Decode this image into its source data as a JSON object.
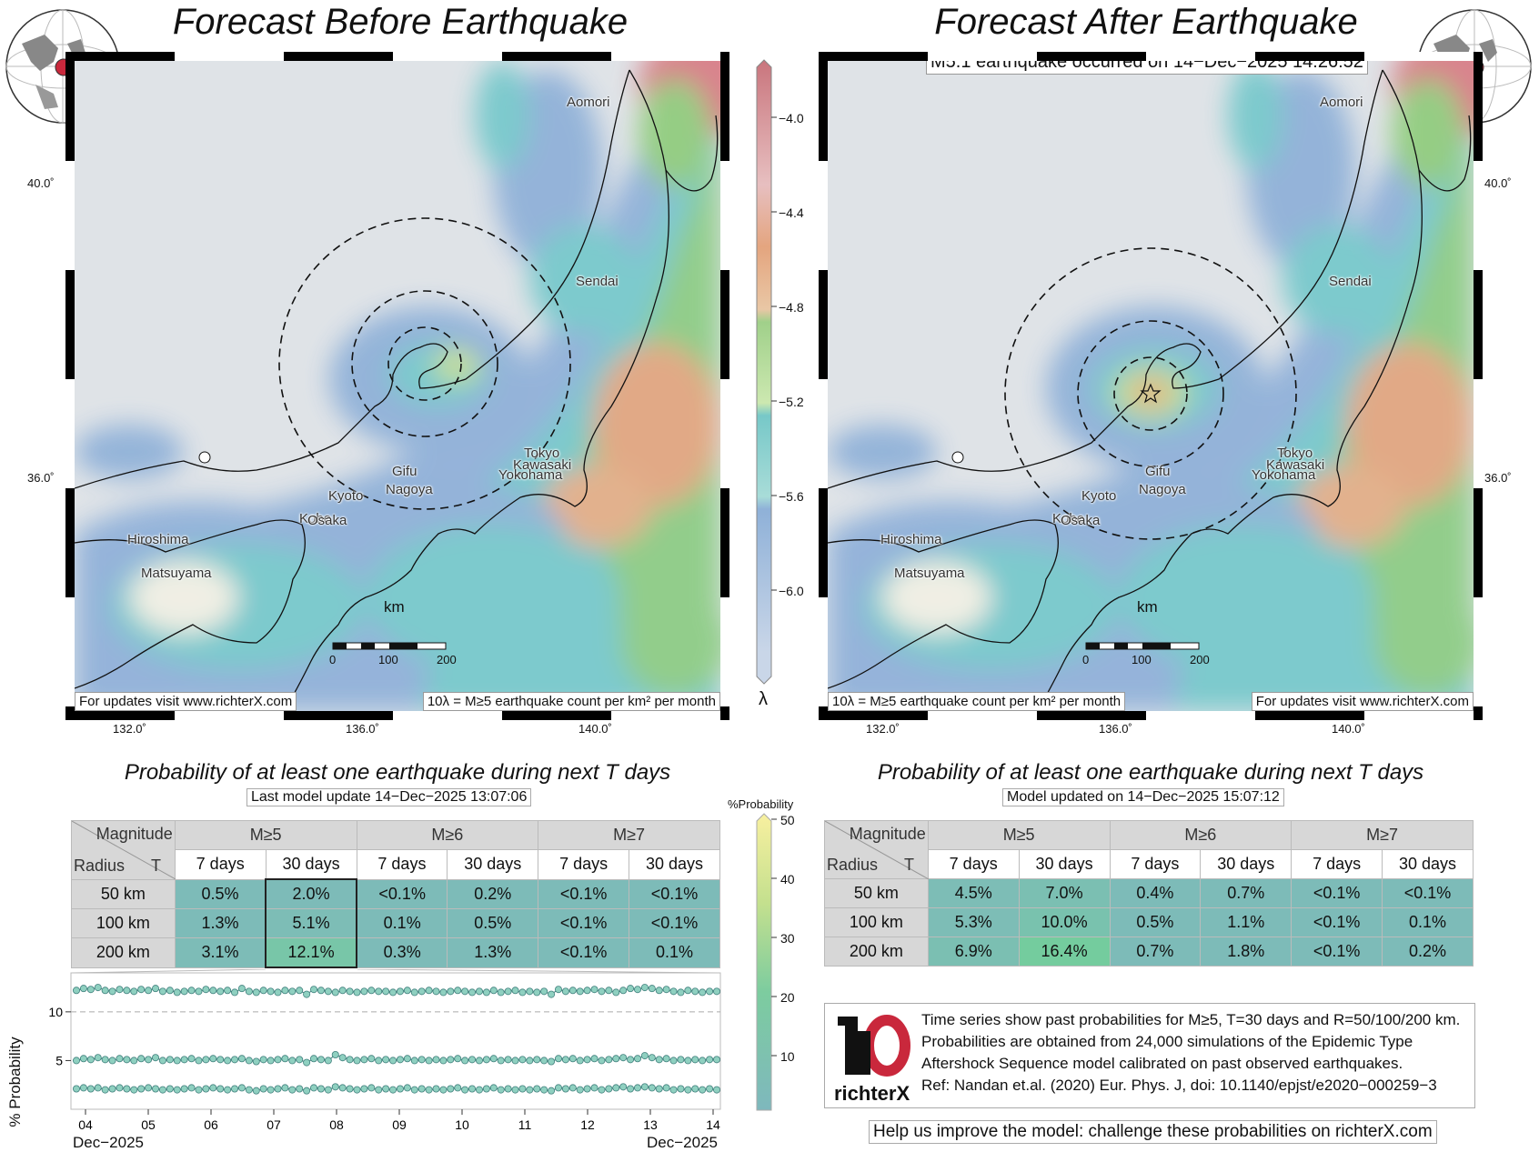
{
  "left_panel": {
    "title": "Forecast Before Earthquake",
    "footer_link": "For updates visit www.richterX.com",
    "footer_units": "10λ = M≥5 earthquake count per km² per month",
    "scale_label": "km",
    "scale_ticks": [
      "0",
      "100",
      "200"
    ],
    "lat_ticks": [
      "40.0˚",
      "36.0˚"
    ],
    "lon_ticks": [
      "132.0˚",
      "136.0˚",
      "140.0˚"
    ],
    "cities": [
      "Aomori",
      "Sendai",
      "Tokyo",
      "Kawasaki",
      "Yokohama",
      "Gifu",
      "Nagoya",
      "Kyoto",
      "Kobe",
      "Osaka",
      "Hiroshima",
      "Matsuyama"
    ]
  },
  "right_panel": {
    "title": "Forecast After Earthquake",
    "event_label": "M5.1 earthquake occurred on 14−Dec−2025 14:26:52",
    "footer_link": "For updates visit www.richterX.com",
    "footer_units": "10λ = M≥5 earthquake count per km² per month",
    "scale_label": "km",
    "scale_ticks": [
      "0",
      "100",
      "200"
    ],
    "lat_ticks": [
      "40.0˚",
      "36.0˚"
    ],
    "lon_ticks": [
      "132.0˚",
      "136.0˚",
      "140.0˚"
    ],
    "cities": [
      "Aomori",
      "Sendai",
      "Tokyo",
      "Kawasaki",
      "Yokohama",
      "Gifu",
      "Nagoya",
      "Kyoto",
      "Kobe",
      "Osaka",
      "Hiroshima",
      "Matsuyama"
    ]
  },
  "lambda_colorbar": {
    "label": "λ",
    "ticks": [
      "−4.0",
      "−4.4",
      "−4.8",
      "−5.2",
      "−5.6",
      "−6.0"
    ],
    "colors": [
      "#c96a72",
      "#e4a07e",
      "#8fcc7c",
      "#6fc7c8",
      "#8eb0d8"
    ]
  },
  "probability_colorbar": {
    "label": "%Probability",
    "ticks": [
      "50",
      "40",
      "30",
      "20",
      "10"
    ],
    "colors": [
      "#f7ee8a",
      "#b2dd8e",
      "#6ec9a0",
      "#7dbbb8"
    ]
  },
  "left_table": {
    "subtitle": "Probability of at least one earthquake during next T days",
    "update_label": "Last model update 14−Dec−2025 13:07:06",
    "corner_top": "Magnitude",
    "corner_left": "Radius",
    "corner_right": "T",
    "magnitudes": [
      "M≥5",
      "M≥6",
      "M≥7"
    ],
    "periods": [
      "7 days",
      "30 days",
      "7 days",
      "30 days",
      "7 days",
      "30 days"
    ],
    "rows": [
      {
        "radius": "50 km",
        "values": [
          "0.5%",
          "2.0%",
          "<0.1%",
          "0.2%",
          "<0.1%",
          "<0.1%"
        ]
      },
      {
        "radius": "100 km",
        "values": [
          "1.3%",
          "5.1%",
          "0.1%",
          "0.5%",
          "<0.1%",
          "<0.1%"
        ]
      },
      {
        "radius": "200 km",
        "values": [
          "3.1%",
          "12.1%",
          "0.3%",
          "1.3%",
          "<0.1%",
          "0.1%"
        ]
      }
    ]
  },
  "right_table": {
    "subtitle": "Probability of at least one earthquake during next T days",
    "update_label": "Model updated on 14−Dec−2025 15:07:12",
    "corner_top": "Magnitude",
    "corner_left": "Radius",
    "corner_right": "T",
    "magnitudes": [
      "M≥5",
      "M≥6",
      "M≥7"
    ],
    "periods": [
      "7 days",
      "30 days",
      "7 days",
      "30 days",
      "7 days",
      "30 days"
    ],
    "rows": [
      {
        "radius": "50 km",
        "values": [
          "4.5%",
          "7.0%",
          "0.4%",
          "0.7%",
          "<0.1%",
          "<0.1%"
        ]
      },
      {
        "radius": "100 km",
        "values": [
          "5.3%",
          "10.0%",
          "0.5%",
          "1.1%",
          "<0.1%",
          "0.1%"
        ]
      },
      {
        "radius": "200 km",
        "values": [
          "6.9%",
          "16.4%",
          "0.7%",
          "1.8%",
          "<0.1%",
          "0.2%"
        ]
      }
    ]
  },
  "info_box": {
    "lines": [
      "Time series show past probabilities for M≥5, T=30 days and R=50/100/200 km.",
      "Probabilities are obtained from 24,000 simulations of the Epidemic Type",
      "Aftershock Sequence model calibrated on past observed earthquakes.",
      "Ref: Nandan et.al. (2020) Eur. Phys. J, doi: 10.1140/epjst/e2020−000259−3"
    ],
    "logo_text": "richterX"
  },
  "help_text": "Help us improve the model: challenge these probabilities on richterX.com",
  "chart_data": {
    "type": "line",
    "ylabel": "% Probability",
    "yticks": [
      "5",
      "10"
    ],
    "ylim": [
      0,
      14
    ],
    "x_tick_labels": [
      "04",
      "05",
      "06",
      "07",
      "08",
      "09",
      "10",
      "11",
      "12",
      "13",
      "14"
    ],
    "x_start_label": "Dec−2025",
    "x_end_label": "Dec−2025",
    "reference_line": 10,
    "series": [
      {
        "values": [
          12.2,
          12.4,
          12.3,
          12.5,
          12.2,
          12.1,
          12.3,
          12.2,
          12.1,
          12.3,
          12.2,
          12.4,
          12.1,
          12.2,
          12.0,
          12.1,
          12.2,
          12.1,
          12.3,
          12.2,
          12.1,
          12.2,
          12.0,
          12.4,
          12.1,
          12.0,
          12.2,
          12.1,
          12.0,
          12.2,
          12.1,
          12.2,
          11.8,
          12.3,
          12.2,
          12.1,
          12.0,
          12.2,
          12.1,
          12.0,
          12.1,
          12.2,
          12.1,
          12.1,
          12.0,
          12.1,
          12.2,
          12.0,
          12.1,
          12.2,
          12.1,
          12.0,
          12.1,
          12.2,
          12.1,
          12.0,
          12.1,
          12.0,
          12.2,
          12.0,
          12.1,
          12.2,
          12.0,
          12.1,
          12.0,
          12.1,
          11.8,
          12.3,
          12.1,
          12.2,
          12.1,
          12.2,
          12.3,
          12.1,
          12.2,
          12.0,
          12.2,
          12.4,
          12.3,
          12.5,
          12.4,
          12.2,
          12.3,
          12.1,
          12.0,
          12.2,
          12.1,
          12.0,
          12.1,
          12.1
        ]
      },
      {
        "values": [
          5.0,
          5.2,
          5.1,
          5.3,
          5.1,
          5.0,
          5.2,
          5.1,
          5.0,
          5.2,
          5.1,
          5.3,
          5.0,
          5.1,
          5.0,
          5.1,
          5.2,
          5.0,
          5.1,
          5.2,
          5.1,
          5.0,
          5.1,
          5.2,
          5.0,
          4.9,
          5.1,
          5.0,
          5.1,
          5.2,
          5.0,
          5.1,
          4.8,
          5.2,
          5.1,
          5.0,
          5.6,
          5.3,
          5.1,
          5.0,
          5.1,
          5.2,
          5.0,
          5.1,
          5.0,
          5.1,
          5.2,
          5.0,
          5.1,
          5.0,
          5.1,
          5.0,
          5.1,
          5.2,
          5.0,
          5.1,
          5.0,
          5.1,
          5.2,
          5.0,
          5.1,
          5.0,
          5.1,
          5.0,
          5.1,
          5.0,
          4.9,
          5.2,
          5.1,
          5.2,
          5.0,
          5.1,
          5.2,
          5.0,
          5.1,
          5.2,
          5.3,
          5.1,
          5.2,
          5.5,
          5.3,
          5.1,
          5.2,
          5.0,
          5.1,
          5.0,
          5.1,
          5.0,
          5.1,
          5.1
        ]
      },
      {
        "values": [
          2.1,
          2.2,
          2.1,
          2.2,
          2.0,
          2.1,
          2.2,
          2.1,
          2.0,
          2.1,
          2.2,
          2.1,
          2.0,
          2.1,
          2.0,
          2.1,
          2.2,
          2.0,
          2.1,
          2.2,
          2.1,
          2.0,
          2.1,
          2.2,
          2.0,
          1.9,
          2.1,
          2.0,
          2.1,
          2.2,
          2.0,
          2.1,
          1.9,
          2.2,
          2.1,
          2.0,
          2.3,
          2.2,
          2.1,
          2.0,
          2.1,
          2.2,
          2.0,
          2.1,
          2.0,
          2.1,
          2.2,
          2.0,
          2.1,
          2.0,
          2.1,
          2.0,
          2.1,
          2.2,
          2.0,
          2.1,
          2.0,
          2.1,
          2.2,
          2.0,
          2.1,
          2.0,
          2.1,
          2.0,
          2.1,
          2.0,
          1.9,
          2.2,
          2.1,
          2.2,
          2.0,
          2.1,
          2.2,
          2.0,
          2.1,
          2.2,
          2.3,
          2.1,
          2.2,
          2.3,
          2.2,
          2.1,
          2.2,
          2.0,
          2.1,
          2.0,
          2.1,
          2.0,
          2.1,
          2.0
        ]
      }
    ]
  }
}
